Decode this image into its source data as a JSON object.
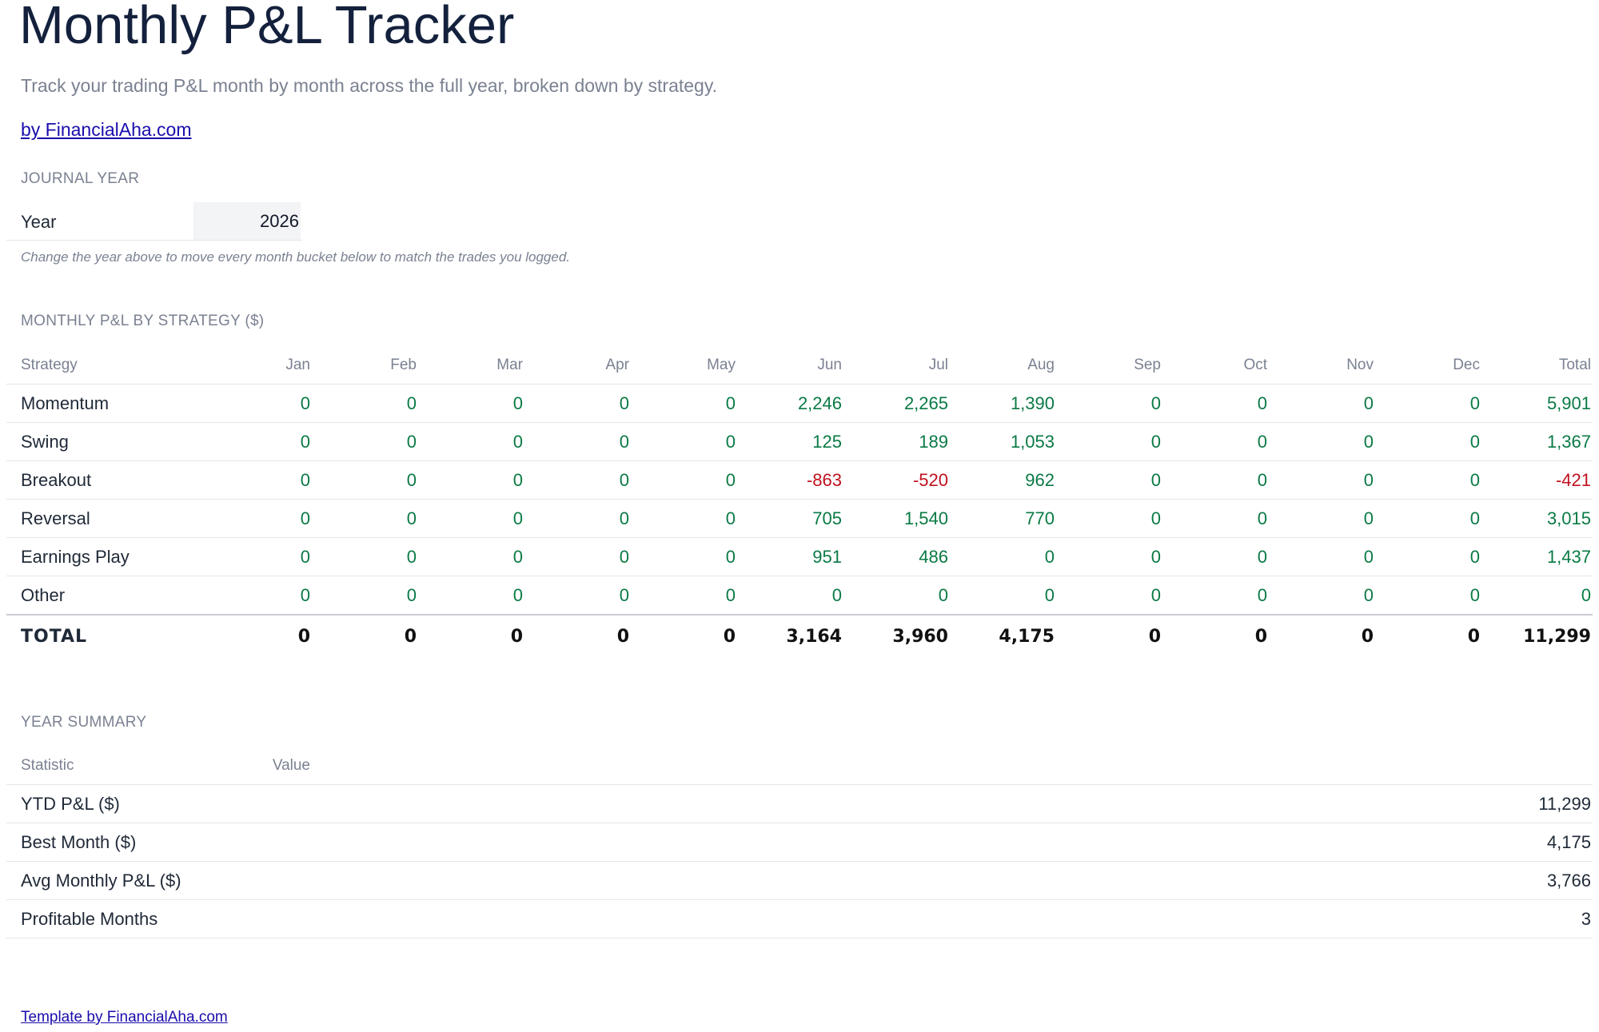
{
  "header": {
    "title": "Monthly P&L Tracker",
    "subtitle": "Track your trading P&L month by month across the full year, broken down by strategy.",
    "byline": "by FinancialAha.com"
  },
  "journal_year": {
    "section_label": "JOURNAL YEAR",
    "year_label": "Year",
    "year_value": "2026",
    "note": "Change the year above to move every month bucket below to match the trades you logged."
  },
  "monthly_pnl": {
    "section_label": "MONTHLY P&L BY STRATEGY ($)",
    "columns": [
      "Strategy",
      "Jan",
      "Feb",
      "Mar",
      "Apr",
      "May",
      "Jun",
      "Jul",
      "Aug",
      "Sep",
      "Oct",
      "Nov",
      "Dec",
      "Total"
    ],
    "rows": [
      {
        "label": "Momentum",
        "values": [
          "0",
          "0",
          "0",
          "0",
          "0",
          "2,246",
          "2,265",
          "1,390",
          "0",
          "0",
          "0",
          "0",
          "5,901"
        ]
      },
      {
        "label": "Swing",
        "values": [
          "0",
          "0",
          "0",
          "0",
          "0",
          "125",
          "189",
          "1,053",
          "0",
          "0",
          "0",
          "0",
          "1,367"
        ]
      },
      {
        "label": "Breakout",
        "values": [
          "0",
          "0",
          "0",
          "0",
          "0",
          "-863",
          "-520",
          "962",
          "0",
          "0",
          "0",
          "0",
          "-421"
        ]
      },
      {
        "label": "Reversal",
        "values": [
          "0",
          "0",
          "0",
          "0",
          "0",
          "705",
          "1,540",
          "770",
          "0",
          "0",
          "0",
          "0",
          "3,015"
        ]
      },
      {
        "label": "Earnings Play",
        "values": [
          "0",
          "0",
          "0",
          "0",
          "0",
          "951",
          "486",
          "0",
          "0",
          "0",
          "0",
          "0",
          "1,437"
        ]
      },
      {
        "label": "Other",
        "values": [
          "0",
          "0",
          "0",
          "0",
          "0",
          "0",
          "0",
          "0",
          "0",
          "0",
          "0",
          "0",
          "0"
        ]
      }
    ],
    "total": {
      "label": "TOTAL",
      "values": [
        "0",
        "0",
        "0",
        "0",
        "0",
        "3,164",
        "3,960",
        "4,175",
        "0",
        "0",
        "0",
        "0",
        "11,299"
      ]
    }
  },
  "year_summary": {
    "section_label": "YEAR SUMMARY",
    "columns": [
      "Statistic",
      "Value"
    ],
    "rows": [
      {
        "label": "YTD P&L ($)",
        "value": "11,299"
      },
      {
        "label": "Best Month ($)",
        "value": "4,175"
      },
      {
        "label": "Avg Monthly P&L ($)",
        "value": "3,766"
      },
      {
        "label": "Profitable Months",
        "value": "3"
      }
    ]
  },
  "footer": {
    "link_text": "Template by FinancialAha.com"
  },
  "colors": {
    "positive": "#0a7a45",
    "negative": "#c0111f",
    "title": "#14213d",
    "muted": "#7a8191",
    "link": "#1a0dab"
  }
}
